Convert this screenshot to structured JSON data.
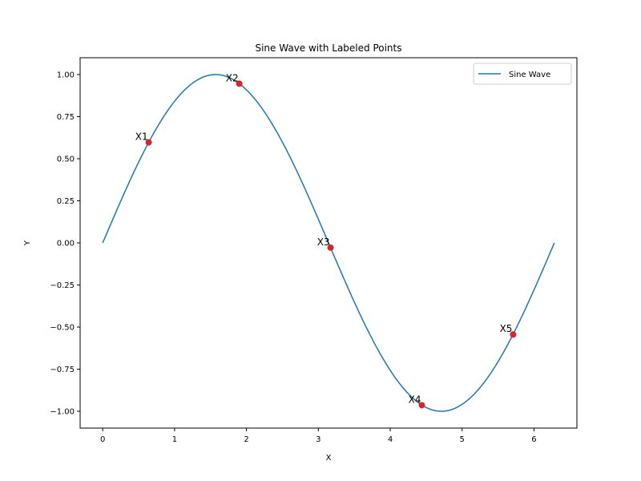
{
  "chart_data": {
    "type": "line",
    "title": "Sine Wave with Labeled Points",
    "xlabel": "X",
    "ylabel": "Y",
    "xlim": [
      -0.314,
      6.597
    ],
    "ylim": [
      -1.1,
      1.1
    ],
    "xticks": [
      "0",
      "1",
      "2",
      "3",
      "4",
      "5",
      "6"
    ],
    "yticks": [
      "1.00",
      "0.75",
      "0.50",
      "0.25",
      "0.00",
      "−0.25",
      "−0.50",
      "−0.75",
      "−1.00"
    ],
    "grid": false,
    "legend": {
      "placement": "top-right",
      "entries": [
        "Sine Wave"
      ]
    },
    "series": [
      {
        "name": "Sine Wave",
        "function": "sin(x)",
        "x_range": [
          0,
          6.283
        ],
        "color": "#1f77b4"
      }
    ],
    "points": [
      {
        "label": "X1",
        "x": 0.64,
        "y": 0.597
      },
      {
        "label": "X2",
        "x": 1.9,
        "y": 0.946
      },
      {
        "label": "X3",
        "x": 3.17,
        "y": -0.028
      },
      {
        "label": "X4",
        "x": 4.44,
        "y": -0.964
      },
      {
        "label": "X5",
        "x": 5.71,
        "y": -0.544
      }
    ],
    "point_color": "#d62728"
  }
}
